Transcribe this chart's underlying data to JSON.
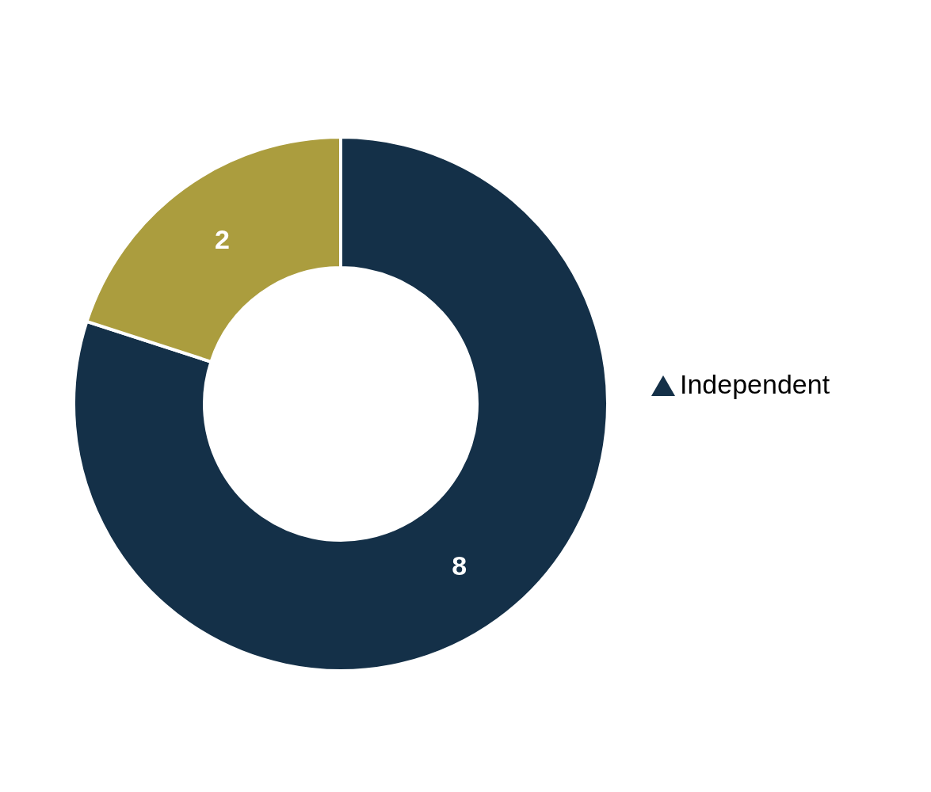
{
  "chart_data": {
    "type": "donut",
    "categories": [
      "Independent",
      null
    ],
    "values": [
      8,
      2
    ],
    "colors": [
      "#143048",
      "#ab9d3e"
    ],
    "data_labels": true,
    "legend": "right",
    "marker": "triangle"
  }
}
